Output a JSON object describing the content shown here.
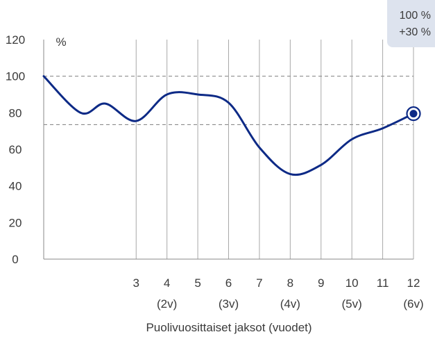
{
  "chart_data": {
    "type": "line",
    "ylabel": "%",
    "xlabel": "Puolivuosittaiset jaksot (vuodet)",
    "ylim": [
      0,
      120
    ],
    "yticks": [
      "0",
      "20",
      "40",
      "60",
      "80",
      "100",
      "120"
    ],
    "ytick_values": [
      0,
      20,
      40,
      60,
      80,
      100,
      120
    ],
    "xlim": [
      0,
      12
    ],
    "xticks": [
      {
        "x": 3,
        "label": "3",
        "sub": ""
      },
      {
        "x": 4,
        "label": "4",
        "sub": "(2v)"
      },
      {
        "x": 5,
        "label": "5",
        "sub": ""
      },
      {
        "x": 6,
        "label": "6",
        "sub": "(3v)"
      },
      {
        "x": 7,
        "label": "7",
        "sub": ""
      },
      {
        "x": 8,
        "label": "8",
        "sub": "(4v)"
      },
      {
        "x": 9,
        "label": "9",
        "sub": ""
      },
      {
        "x": 10,
        "label": "10",
        "sub": "(5v)"
      },
      {
        "x": 11,
        "label": "11",
        "sub": ""
      },
      {
        "x": 12,
        "label": "12",
        "sub": "(6v)"
      }
    ],
    "reference_lines": [
      100,
      73.5
    ],
    "series": [
      {
        "x": [
          0,
          1.2,
          2,
          3,
          4,
          5,
          6,
          7,
          8,
          9,
          10,
          11,
          12
        ],
        "y": [
          100,
          80,
          85,
          75.5,
          90,
          90,
          85.5,
          61,
          46.5,
          51.5,
          65.5,
          71.5,
          79.5
        ],
        "color": "#0d2a86"
      }
    ],
    "end_marker": {
      "x": 12,
      "y": 79.5
    },
    "badge": {
      "line1": "100 %",
      "line2": "+30 %"
    },
    "colors": {
      "line": "#0d2a86",
      "grid": "#a8a8a8",
      "ref": "#8a8a8a",
      "badge_bg": "#dde3ee"
    }
  }
}
